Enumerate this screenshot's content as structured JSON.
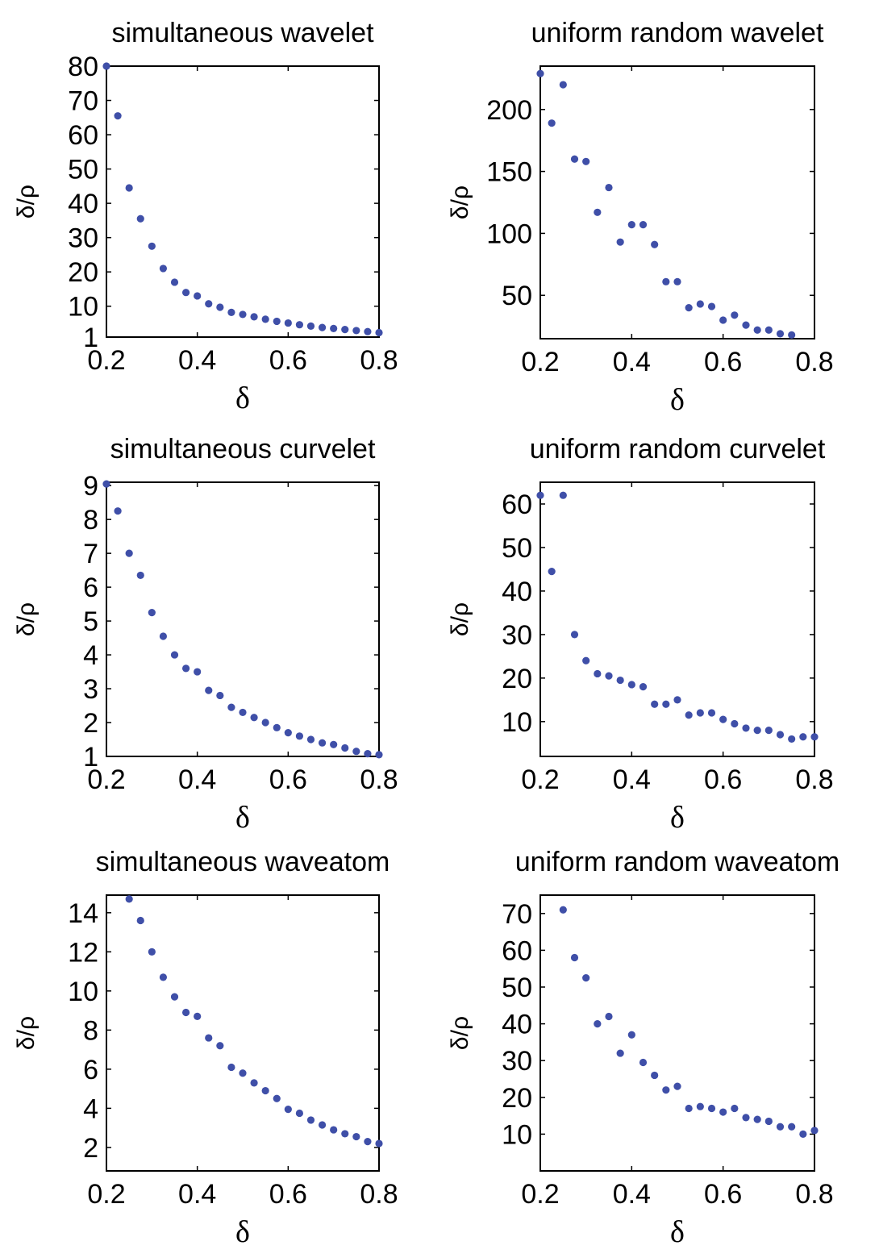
{
  "chart_data": [
    {
      "type": "scatter",
      "title": "simultaneous wavelet",
      "xlabel": "δ",
      "ylabel": "δ/ρ",
      "xlim": [
        0.2,
        0.8
      ],
      "ylim": [
        1,
        80
      ],
      "xticks": [
        "0.2",
        "0.4",
        "0.6",
        "0.8"
      ],
      "yticks": [
        "1",
        "10",
        "20",
        "30",
        "40",
        "50",
        "60",
        "70",
        "80"
      ],
      "marker_color": "#3f4fa8",
      "series": [
        {
          "x": [
            0.2,
            0.225,
            0.25,
            0.275,
            0.3,
            0.325,
            0.35,
            0.375,
            0.4,
            0.425,
            0.45,
            0.475,
            0.5,
            0.525,
            0.55,
            0.575,
            0.6,
            0.625,
            0.65,
            0.675,
            0.7,
            0.725,
            0.75,
            0.775,
            0.8
          ],
          "y": [
            80,
            65.5,
            44.5,
            35.5,
            27.5,
            21,
            17,
            14,
            13,
            10.7,
            9.7,
            8.2,
            7.6,
            6.9,
            6.2,
            5.6,
            5.1,
            4.6,
            4.2,
            3.8,
            3.5,
            3.2,
            2.9,
            2.6,
            2.3
          ]
        }
      ]
    },
    {
      "type": "scatter",
      "title": "uniform random wavelet",
      "xlabel": "δ",
      "ylabel": "δ/ρ",
      "xlim": [
        0.2,
        0.8
      ],
      "ylim": [
        15,
        235
      ],
      "xticks": [
        "0.2",
        "0.4",
        "0.6",
        "0.8"
      ],
      "yticks": [
        "50",
        "100",
        "150",
        "200"
      ],
      "marker_color": "#3f4fa8",
      "series": [
        {
          "x": [
            0.2,
            0.225,
            0.25,
            0.275,
            0.3,
            0.325,
            0.35,
            0.375,
            0.4,
            0.425,
            0.45,
            0.475,
            0.5,
            0.525,
            0.55,
            0.575,
            0.6,
            0.625,
            0.65,
            0.675,
            0.7,
            0.725,
            0.75
          ],
          "y": [
            229,
            189,
            220,
            160,
            158,
            117,
            137,
            93,
            107,
            107,
            91,
            61,
            61,
            40,
            43,
            41,
            30,
            34,
            26,
            22,
            22,
            19,
            18
          ]
        }
      ]
    },
    {
      "type": "scatter",
      "title": "simultaneous curvelet",
      "xlabel": "δ",
      "ylabel": "δ/ρ",
      "xlim": [
        0.2,
        0.8
      ],
      "ylim": [
        1,
        9.1
      ],
      "xticks": [
        "0.2",
        "0.4",
        "0.6",
        "0.8"
      ],
      "yticks": [
        "1",
        "2",
        "3",
        "4",
        "5",
        "6",
        "7",
        "8",
        "9"
      ],
      "marker_color": "#3f4fa8",
      "series": [
        {
          "x": [
            0.2,
            0.225,
            0.25,
            0.275,
            0.3,
            0.325,
            0.35,
            0.375,
            0.4,
            0.425,
            0.45,
            0.475,
            0.5,
            0.525,
            0.55,
            0.575,
            0.6,
            0.625,
            0.65,
            0.675,
            0.7,
            0.725,
            0.75,
            0.775,
            0.8
          ],
          "y": [
            9.05,
            8.25,
            7,
            6.35,
            5.25,
            4.55,
            4,
            3.6,
            3.5,
            2.95,
            2.8,
            2.45,
            2.3,
            2.15,
            2.0,
            1.85,
            1.7,
            1.6,
            1.5,
            1.4,
            1.35,
            1.25,
            1.15,
            1.08,
            1.05
          ]
        }
      ]
    },
    {
      "type": "scatter",
      "title": "uniform random curvelet",
      "xlabel": "δ",
      "ylabel": "δ/ρ",
      "xlim": [
        0.2,
        0.8
      ],
      "ylim": [
        2,
        65
      ],
      "xticks": [
        "0.2",
        "0.4",
        "0.6",
        "0.8"
      ],
      "yticks": [
        "10",
        "20",
        "30",
        "40",
        "50",
        "60"
      ],
      "marker_color": "#3f4fa8",
      "series": [
        {
          "x": [
            0.2,
            0.225,
            0.25,
            0.275,
            0.3,
            0.325,
            0.35,
            0.375,
            0.4,
            0.425,
            0.45,
            0.475,
            0.5,
            0.525,
            0.55,
            0.575,
            0.6,
            0.625,
            0.65,
            0.675,
            0.7,
            0.725,
            0.75,
            0.775,
            0.8
          ],
          "y": [
            62,
            44.5,
            62,
            30,
            24,
            21,
            20.5,
            19.5,
            18.5,
            18,
            14,
            14,
            15,
            11.5,
            12,
            12,
            10.5,
            9.5,
            8.5,
            8,
            8,
            7,
            6,
            6.5,
            6.5
          ]
        }
      ]
    },
    {
      "type": "scatter",
      "title": "simultaneous waveatom",
      "xlabel": "δ",
      "ylabel": "δ/ρ",
      "xlim": [
        0.2,
        0.8
      ],
      "ylim": [
        0.8,
        14.9
      ],
      "xticks": [
        "0.2",
        "0.4",
        "0.6",
        "0.8"
      ],
      "yticks": [
        "2",
        "4",
        "6",
        "8",
        "10",
        "12",
        "14"
      ],
      "marker_color": "#3f4fa8",
      "series": [
        {
          "x": [
            0.25,
            0.275,
            0.3,
            0.325,
            0.35,
            0.375,
            0.4,
            0.425,
            0.45,
            0.475,
            0.5,
            0.525,
            0.55,
            0.575,
            0.6,
            0.625,
            0.65,
            0.675,
            0.7,
            0.725,
            0.75,
            0.775,
            0.8
          ],
          "y": [
            14.7,
            13.6,
            12,
            10.7,
            9.7,
            8.9,
            8.7,
            7.6,
            7.2,
            6.1,
            5.8,
            5.3,
            4.9,
            4.5,
            3.95,
            3.75,
            3.4,
            3.15,
            2.9,
            2.7,
            2.55,
            2.3,
            2.2
          ]
        }
      ]
    },
    {
      "type": "scatter",
      "title": "uniform random waveatom",
      "xlabel": "δ",
      "ylabel": "δ/ρ",
      "xlim": [
        0.2,
        0.8
      ],
      "ylim": [
        0,
        75
      ],
      "xticks": [
        "0.2",
        "0.4",
        "0.6",
        "0.8"
      ],
      "yticks": [
        "10",
        "20",
        "30",
        "40",
        "50",
        "60",
        "70"
      ],
      "marker_color": "#3f4fa8",
      "series": [
        {
          "x": [
            0.25,
            0.275,
            0.3,
            0.325,
            0.35,
            0.375,
            0.4,
            0.425,
            0.45,
            0.475,
            0.5,
            0.525,
            0.55,
            0.575,
            0.6,
            0.625,
            0.65,
            0.675,
            0.7,
            0.725,
            0.75,
            0.775,
            0.8
          ],
          "y": [
            71,
            58,
            52.5,
            40,
            42,
            32,
            37,
            29.5,
            26,
            22,
            23,
            17,
            17.5,
            17,
            16,
            17,
            14.5,
            14,
            13.5,
            12,
            12,
            10,
            11
          ]
        }
      ]
    }
  ]
}
